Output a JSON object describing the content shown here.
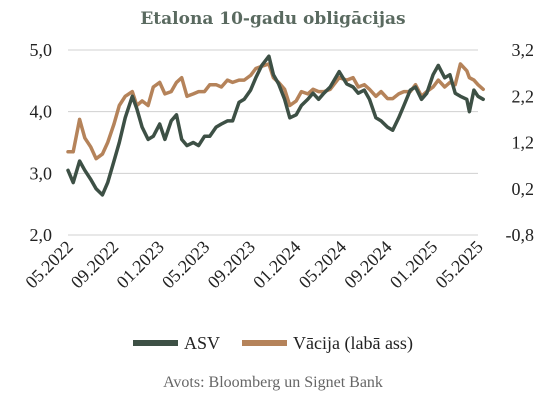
{
  "title": "Etalona 10-gadu obligācijas",
  "source": "Avots: Bloomberg un Signet Bank",
  "colors": {
    "asv": "#3d5045",
    "vacija": "#b5835a",
    "grid": "#d0d0d0"
  },
  "chart_data": {
    "type": "line",
    "title": "Etalona 10-gadu obligācijas",
    "x_range": [
      "2022-05",
      "2025-05"
    ],
    "x_ticks": [
      "05.2022",
      "09.2022",
      "01.2023",
      "05.2023",
      "09.2023",
      "01.2024",
      "05.2024",
      "09.2024",
      "01.2025",
      "05.2025"
    ],
    "y_left": {
      "ylim": [
        2.0,
        5.0
      ],
      "ticks": [
        "2,0",
        "3,0",
        "4,0",
        "5,0"
      ]
    },
    "y_right": {
      "ylim": [
        -0.8,
        3.2
      ],
      "ticks": [
        "-0,8",
        "0,2",
        "1,2",
        "2,2",
        "3,2"
      ]
    },
    "grid": "horizontal",
    "legend_position": "bottom",
    "series": [
      {
        "name": "ASV",
        "axis": "left",
        "x": [
          "2022-05-01",
          "2022-05-15",
          "2022-06-01",
          "2022-06-15",
          "2022-07-01",
          "2022-07-15",
          "2022-08-01",
          "2022-08-15",
          "2022-09-01",
          "2022-09-15",
          "2022-10-01",
          "2022-10-20",
          "2022-11-01",
          "2022-11-15",
          "2022-12-01",
          "2022-12-15",
          "2023-01-01",
          "2023-01-15",
          "2023-02-01",
          "2023-02-15",
          "2023-03-01",
          "2023-03-15",
          "2023-04-01",
          "2023-04-15",
          "2023-05-01",
          "2023-05-15",
          "2023-06-01",
          "2023-06-15",
          "2023-07-01",
          "2023-07-15",
          "2023-08-01",
          "2023-08-15",
          "2023-09-01",
          "2023-09-15",
          "2023-10-01",
          "2023-10-20",
          "2023-11-01",
          "2023-11-15",
          "2023-12-01",
          "2023-12-15",
          "2024-01-01",
          "2024-01-15",
          "2024-02-01",
          "2024-02-15",
          "2024-03-01",
          "2024-03-15",
          "2024-04-01",
          "2024-04-25",
          "2024-05-15",
          "2024-06-01",
          "2024-06-15",
          "2024-07-01",
          "2024-07-15",
          "2024-08-01",
          "2024-08-15",
          "2024-09-01",
          "2024-09-15",
          "2024-10-01",
          "2024-10-15",
          "2024-11-01",
          "2024-11-15",
          "2024-12-01",
          "2024-12-15",
          "2025-01-01",
          "2025-01-15",
          "2025-02-01",
          "2025-02-15",
          "2025-03-01",
          "2025-03-15",
          "2025-04-01",
          "2025-04-08",
          "2025-04-20",
          "2025-05-01",
          "2025-05-15"
        ],
        "values": [
          3.05,
          2.85,
          3.2,
          3.05,
          2.9,
          2.75,
          2.65,
          2.85,
          3.2,
          3.5,
          3.9,
          4.25,
          4.05,
          3.75,
          3.55,
          3.6,
          3.8,
          3.55,
          3.85,
          3.95,
          3.55,
          3.45,
          3.5,
          3.45,
          3.6,
          3.6,
          3.75,
          3.8,
          3.85,
          3.85,
          4.15,
          4.2,
          4.35,
          4.55,
          4.75,
          4.9,
          4.6,
          4.45,
          4.2,
          3.9,
          3.95,
          4.1,
          4.2,
          4.3,
          4.2,
          4.3,
          4.4,
          4.65,
          4.45,
          4.4,
          4.3,
          4.35,
          4.2,
          3.9,
          3.85,
          3.75,
          3.7,
          3.9,
          4.1,
          4.35,
          4.4,
          4.2,
          4.3,
          4.6,
          4.75,
          4.55,
          4.6,
          4.3,
          4.25,
          4.2,
          4.0,
          4.35,
          4.25,
          4.2
        ]
      },
      {
        "name": "Vācija (labā ass)",
        "axis": "right",
        "x": [
          "2022-05-01",
          "2022-05-15",
          "2022-06-01",
          "2022-06-15",
          "2022-07-01",
          "2022-07-15",
          "2022-08-01",
          "2022-08-15",
          "2022-09-01",
          "2022-09-15",
          "2022-10-01",
          "2022-10-20",
          "2022-11-01",
          "2022-11-15",
          "2022-12-01",
          "2022-12-15",
          "2023-01-01",
          "2023-01-15",
          "2023-02-01",
          "2023-02-15",
          "2023-03-01",
          "2023-03-15",
          "2023-04-01",
          "2023-04-15",
          "2023-05-01",
          "2023-05-15",
          "2023-06-01",
          "2023-06-15",
          "2023-07-01",
          "2023-07-15",
          "2023-08-01",
          "2023-08-15",
          "2023-09-01",
          "2023-09-15",
          "2023-10-01",
          "2023-10-20",
          "2023-11-01",
          "2023-11-15",
          "2023-12-01",
          "2023-12-15",
          "2024-01-01",
          "2024-01-15",
          "2024-02-01",
          "2024-02-15",
          "2024-03-01",
          "2024-03-15",
          "2024-04-01",
          "2024-04-25",
          "2024-05-15",
          "2024-06-01",
          "2024-06-15",
          "2024-07-01",
          "2024-07-15",
          "2024-08-01",
          "2024-08-15",
          "2024-09-01",
          "2024-09-15",
          "2024-10-01",
          "2024-10-15",
          "2024-11-01",
          "2024-11-15",
          "2024-12-01",
          "2024-12-15",
          "2025-01-01",
          "2025-01-15",
          "2025-02-01",
          "2025-02-15",
          "2025-03-01",
          "2025-03-15",
          "2025-04-01",
          "2025-04-08",
          "2025-04-20",
          "2025-05-01",
          "2025-05-15"
        ],
        "values": [
          1.0,
          1.0,
          1.7,
          1.3,
          1.1,
          0.85,
          0.95,
          1.2,
          1.6,
          2.0,
          2.2,
          2.3,
          2.0,
          2.1,
          2.0,
          2.4,
          2.5,
          2.25,
          2.3,
          2.5,
          2.6,
          2.2,
          2.25,
          2.3,
          2.3,
          2.45,
          2.45,
          2.4,
          2.55,
          2.5,
          2.55,
          2.55,
          2.65,
          2.8,
          2.85,
          2.9,
          2.6,
          2.5,
          2.35,
          2.0,
          2.1,
          2.3,
          2.25,
          2.35,
          2.3,
          2.3,
          2.35,
          2.6,
          2.55,
          2.6,
          2.4,
          2.45,
          2.35,
          2.2,
          2.3,
          2.15,
          2.15,
          2.25,
          2.3,
          2.3,
          2.45,
          2.2,
          2.3,
          2.4,
          2.55,
          2.4,
          2.5,
          2.45,
          2.9,
          2.75,
          2.6,
          2.55,
          2.45,
          2.35
        ]
      }
    ]
  }
}
